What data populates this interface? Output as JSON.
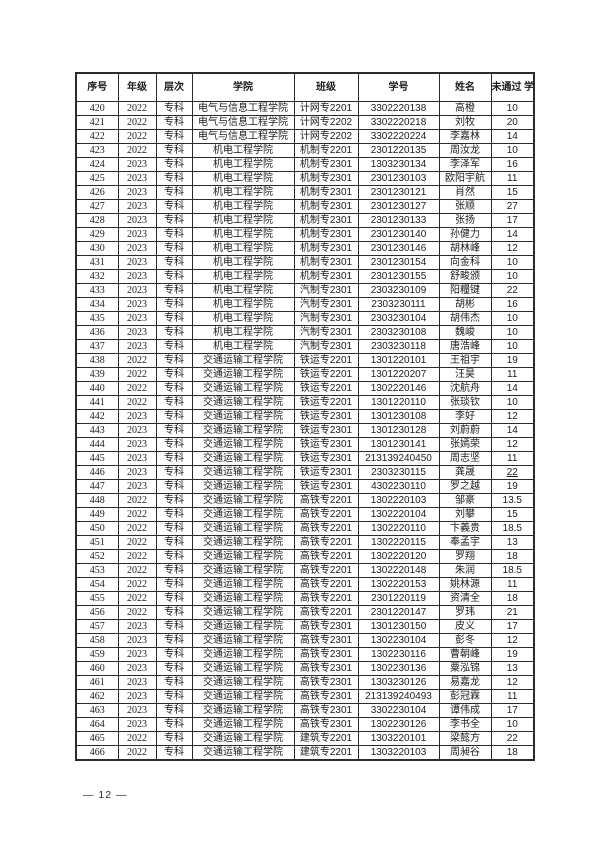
{
  "footer": {
    "page_number": "— 12 —"
  },
  "table": {
    "headers": [
      "序号",
      "年级",
      "层次",
      "学院",
      "班级",
      "学号",
      "姓名",
      "未通过\n学分"
    ],
    "rows": [
      {
        "no": "420",
        "year": "2022",
        "level": "专科",
        "college": "电气与信息工程学院",
        "class": "计网专2201",
        "student_id": "3302220138",
        "name": "高橙",
        "credits": "10"
      },
      {
        "no": "421",
        "year": "2022",
        "level": "专科",
        "college": "电气与信息工程学院",
        "class": "计网专2202",
        "student_id": "3302220218",
        "name": "刘牧",
        "credits": "20"
      },
      {
        "no": "422",
        "year": "2022",
        "level": "专科",
        "college": "电气与信息工程学院",
        "class": "计网专2202",
        "student_id": "3302220224",
        "name": "李嘉林",
        "credits": "14"
      },
      {
        "no": "423",
        "year": "2022",
        "level": "专科",
        "college": "机电工程学院",
        "class": "机制专2201",
        "student_id": "2301220135",
        "name": "周汝龙",
        "credits": "10"
      },
      {
        "no": "424",
        "year": "2023",
        "level": "专科",
        "college": "机电工程学院",
        "class": "机制专2301",
        "student_id": "1303230134",
        "name": "李泽军",
        "credits": "16"
      },
      {
        "no": "425",
        "year": "2023",
        "level": "专科",
        "college": "机电工程学院",
        "class": "机制专2301",
        "student_id": "2301230103",
        "name": "欧阳宇航",
        "credits": "11"
      },
      {
        "no": "426",
        "year": "2023",
        "level": "专科",
        "college": "机电工程学院",
        "class": "机制专2301",
        "student_id": "2301230121",
        "name": "肖然",
        "credits": "15"
      },
      {
        "no": "427",
        "year": "2023",
        "level": "专科",
        "college": "机电工程学院",
        "class": "机制专2301",
        "student_id": "2301230127",
        "name": "张顺",
        "credits": "27"
      },
      {
        "no": "428",
        "year": "2023",
        "level": "专科",
        "college": "机电工程学院",
        "class": "机制专2301",
        "student_id": "2301230133",
        "name": "张扬",
        "credits": "17"
      },
      {
        "no": "429",
        "year": "2023",
        "level": "专科",
        "college": "机电工程学院",
        "class": "机制专2301",
        "student_id": "2301230140",
        "name": "孙健力",
        "credits": "14"
      },
      {
        "no": "430",
        "year": "2023",
        "level": "专科",
        "college": "机电工程学院",
        "class": "机制专2301",
        "student_id": "2301230146",
        "name": "胡林峰",
        "credits": "12"
      },
      {
        "no": "431",
        "year": "2023",
        "level": "专科",
        "college": "机电工程学院",
        "class": "机制专2301",
        "student_id": "2301230154",
        "name": "向金科",
        "credits": "10"
      },
      {
        "no": "432",
        "year": "2023",
        "level": "专科",
        "college": "机电工程学院",
        "class": "机制专2301",
        "student_id": "2301230155",
        "name": "舒畯颁",
        "credits": "10"
      },
      {
        "no": "433",
        "year": "2023",
        "level": "专科",
        "college": "机电工程学院",
        "class": "汽制专2301",
        "student_id": "2303230109",
        "name": "阳糧键",
        "credits": "22"
      },
      {
        "no": "434",
        "year": "2023",
        "level": "专科",
        "college": "机电工程学院",
        "class": "汽制专2301",
        "student_id": "2303230111",
        "name": "胡彬",
        "credits": "16"
      },
      {
        "no": "435",
        "year": "2023",
        "level": "专科",
        "college": "机电工程学院",
        "class": "汽制专2301",
        "student_id": "2303230104",
        "name": "胡伟杰",
        "credits": "10"
      },
      {
        "no": "436",
        "year": "2023",
        "level": "专科",
        "college": "机电工程学院",
        "class": "汽制专2301",
        "student_id": "2303230108",
        "name": "魏峻",
        "credits": "10"
      },
      {
        "no": "437",
        "year": "2023",
        "level": "专科",
        "college": "机电工程学院",
        "class": "汽制专2301",
        "student_id": "2303230118",
        "name": "唐浩峰",
        "credits": "10"
      },
      {
        "no": "438",
        "year": "2022",
        "level": "专科",
        "college": "交通运输工程学院",
        "class": "铁运专2201",
        "student_id": "1301220101",
        "name": "王祖宇",
        "credits": "19"
      },
      {
        "no": "439",
        "year": "2022",
        "level": "专科",
        "college": "交通运输工程学院",
        "class": "铁运专2201",
        "student_id": "1301220207",
        "name": "汪昊",
        "credits": "11"
      },
      {
        "no": "440",
        "year": "2022",
        "level": "专科",
        "college": "交通运输工程学院",
        "class": "铁运专2201",
        "student_id": "1302220146",
        "name": "沈航舟",
        "credits": "14"
      },
      {
        "no": "441",
        "year": "2022",
        "level": "专科",
        "college": "交通运输工程学院",
        "class": "铁运专2201",
        "student_id": "1301220110",
        "name": "张琰钦",
        "credits": "10"
      },
      {
        "no": "442",
        "year": "2023",
        "level": "专科",
        "college": "交通运输工程学院",
        "class": "铁运专2301",
        "student_id": "1301230108",
        "name": "李好",
        "credits": "12"
      },
      {
        "no": "443",
        "year": "2023",
        "level": "专科",
        "college": "交通运输工程学院",
        "class": "铁运专2301",
        "student_id": "1301230128",
        "name": "刘蔚蔚",
        "credits": "14"
      },
      {
        "no": "444",
        "year": "2023",
        "level": "专科",
        "college": "交通运输工程学院",
        "class": "铁运专2301",
        "student_id": "1301230141",
        "name": "张嫣荣",
        "credits": "12"
      },
      {
        "no": "445",
        "year": "2023",
        "level": "专科",
        "college": "交通运输工程学院",
        "class": "铁运专2301",
        "student_id": "213139240450",
        "name": "周志坚",
        "credits": "11"
      },
      {
        "no": "446",
        "year": "2023",
        "level": "专科",
        "college": "交通运输工程学院",
        "class": "铁运专2301",
        "student_id": "2303230115",
        "name": "龚晟",
        "credits": "22",
        "credits_underline": true
      },
      {
        "no": "447",
        "year": "2023",
        "level": "专科",
        "college": "交通运输工程学院",
        "class": "铁运专2301",
        "student_id": "4302230110",
        "name": "罗之越",
        "credits": "19"
      },
      {
        "no": "448",
        "year": "2022",
        "level": "专科",
        "college": "交通运输工程学院",
        "class": "高铁专2201",
        "student_id": "1302220103",
        "name": "邹豪",
        "credits": "13.5"
      },
      {
        "no": "449",
        "year": "2022",
        "level": "专科",
        "college": "交通运输工程学院",
        "class": "高铁专2201",
        "student_id": "1302220104",
        "name": "刘攀",
        "credits": "15"
      },
      {
        "no": "450",
        "year": "2022",
        "level": "专科",
        "college": "交通运输工程学院",
        "class": "高铁专2201",
        "student_id": "1302220110",
        "name": "卞義贵",
        "credits": "18.5"
      },
      {
        "no": "451",
        "year": "2022",
        "level": "专科",
        "college": "交通运输工程学院",
        "class": "高铁专2201",
        "student_id": "1302220115",
        "name": "奉孟宇",
        "credits": "13"
      },
      {
        "no": "452",
        "year": "2022",
        "level": "专科",
        "college": "交通运输工程学院",
        "class": "高铁专2201",
        "student_id": "1302220120",
        "name": "罗翔",
        "credits": "18"
      },
      {
        "no": "453",
        "year": "2022",
        "level": "专科",
        "college": "交通运输工程学院",
        "class": "高铁专2201",
        "student_id": "1302220148",
        "name": "朱润",
        "credits": "18.5"
      },
      {
        "no": "454",
        "year": "2022",
        "level": "专科",
        "college": "交通运输工程学院",
        "class": "高铁专2201",
        "student_id": "1302220153",
        "name": "姚林源",
        "credits": "11"
      },
      {
        "no": "455",
        "year": "2022",
        "level": "专科",
        "college": "交通运输工程学院",
        "class": "高铁专2201",
        "student_id": "2301220119",
        "name": "资清全",
        "credits": "18"
      },
      {
        "no": "456",
        "year": "2022",
        "level": "专科",
        "college": "交通运输工程学院",
        "class": "高铁专2201",
        "student_id": "2301220147",
        "name": "罗玮",
        "credits": "21"
      },
      {
        "no": "457",
        "year": "2023",
        "level": "专科",
        "college": "交通运输工程学院",
        "class": "高铁专2301",
        "student_id": "1301230150",
        "name": "皮义",
        "credits": "17"
      },
      {
        "no": "458",
        "year": "2023",
        "level": "专科",
        "college": "交通运输工程学院",
        "class": "高铁专2301",
        "student_id": "1302230104",
        "name": "彭冬",
        "credits": "12"
      },
      {
        "no": "459",
        "year": "2023",
        "level": "专科",
        "college": "交通运输工程学院",
        "class": "高铁专2301",
        "student_id": "1302230116",
        "name": "曹朝峰",
        "credits": "19"
      },
      {
        "no": "460",
        "year": "2023",
        "level": "专科",
        "college": "交通运输工程学院",
        "class": "高铁专2301",
        "student_id": "1302230136",
        "name": "粟泓锦",
        "credits": "13"
      },
      {
        "no": "461",
        "year": "2023",
        "level": "专科",
        "college": "交通运输工程学院",
        "class": "高铁专2301",
        "student_id": "1303230126",
        "name": "易嘉龙",
        "credits": "12"
      },
      {
        "no": "462",
        "year": "2023",
        "level": "专科",
        "college": "交通运输工程学院",
        "class": "高铁专2301",
        "student_id": "213139240493",
        "name": "彭冠霖",
        "credits": "11"
      },
      {
        "no": "463",
        "year": "2023",
        "level": "专科",
        "college": "交通运输工程学院",
        "class": "高铁专2301",
        "student_id": "3302230104",
        "name": "谭伟成",
        "credits": "17"
      },
      {
        "no": "464",
        "year": "2023",
        "level": "专科",
        "college": "交通运输工程学院",
        "class": "高铁专2301",
        "student_id": "1302230126",
        "name": "李书全",
        "credits": "10"
      },
      {
        "no": "465",
        "year": "2022",
        "level": "专科",
        "college": "交通运输工程学院",
        "class": "建筑专2201",
        "student_id": "1303220101",
        "name": "梁懿方",
        "credits": "22"
      },
      {
        "no": "466",
        "year": "2022",
        "level": "专科",
        "college": "交通运输工程学院",
        "class": "建筑专2201",
        "student_id": "1303220103",
        "name": "周昶谷",
        "credits": "18"
      }
    ]
  }
}
